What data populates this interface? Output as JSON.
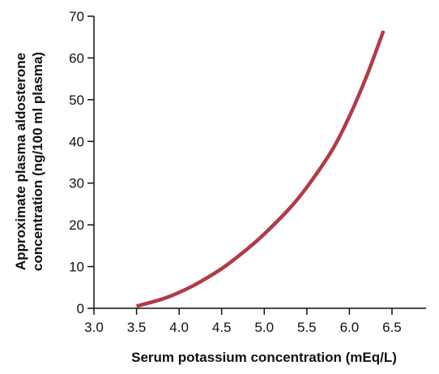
{
  "chart_data": {
    "type": "line",
    "title": "",
    "xlabel": "Serum potassium concentration (mEq/L)",
    "ylabel_lines": [
      "Approximate plasma aldosterone",
      "concentration (ng/100 ml plasma)"
    ],
    "xlim": [
      3.0,
      6.9
    ],
    "ylim": [
      0,
      70
    ],
    "x_ticks": [
      3.0,
      3.5,
      4.0,
      4.5,
      5.0,
      5.5,
      6.0,
      6.5
    ],
    "x_tick_labels": [
      "3.0",
      "3.5",
      "4.0",
      "4.5",
      "5.0",
      "5.5",
      "6.0",
      "6.5"
    ],
    "y_ticks": [
      0,
      10,
      20,
      30,
      40,
      50,
      60,
      70
    ],
    "y_tick_labels": [
      "0",
      "10",
      "20",
      "30",
      "40",
      "50",
      "60",
      "70"
    ],
    "grid": false,
    "legend": "none",
    "series": [
      {
        "color": "#b23a48",
        "x": [
          3.5,
          3.8,
          4.0,
          4.2,
          4.5,
          4.8,
          5.0,
          5.3,
          5.5,
          5.8,
          6.0,
          6.2,
          6.4
        ],
        "y": [
          0.5,
          2.2,
          3.8,
          5.8,
          9.5,
          14.2,
          17.8,
          24.0,
          29.0,
          38.0,
          46.0,
          55.5,
          66.5
        ]
      }
    ]
  }
}
